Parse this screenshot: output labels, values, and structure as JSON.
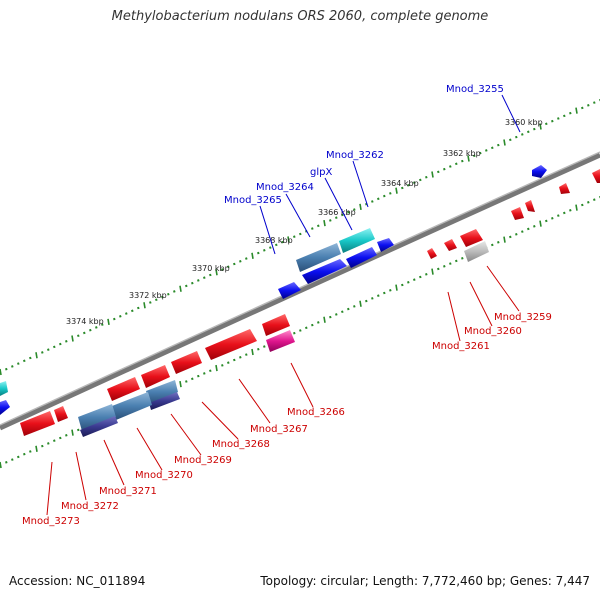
{
  "title": "Methylobacterium nodulans ORS 2060, complete genome",
  "footer": {
    "accession": "Accession: NC_011894",
    "summary": "Topology: circular; Length: 7,772,460 bp; Genes: 7,447"
  },
  "colors": {
    "forward": "#e8101a",
    "reverse": "#0b0ff0",
    "cyan": "#18c8c8",
    "steel": "#4a7fb0",
    "pink": "#e0168e",
    "gray": "#bbbbbb",
    "tick": "#2a8a2a",
    "backbone": "#888888",
    "label_forward": "#cc0000",
    "label_reverse": "#0000cc"
  },
  "ruler_labels": [
    "3360 kbp",
    "3362 kbp",
    "3364 kbp",
    "3366 kbp",
    "3368 kbp",
    "3370 kbp",
    "3372 kbp",
    "3374 kbp"
  ],
  "genes_forward": [
    "Mnod_3255",
    "Mnod_3262",
    "glpX",
    "Mnod_3264",
    "Mnod_3265"
  ],
  "genes_reverse": [
    "Mnod_3259",
    "Mnod_3260",
    "Mnod_3261",
    "Mnod_3266",
    "Mnod_3267",
    "Mnod_3268",
    "Mnod_3269",
    "Mnod_3270",
    "Mnod_3271",
    "Mnod_3272",
    "Mnod_3273"
  ]
}
